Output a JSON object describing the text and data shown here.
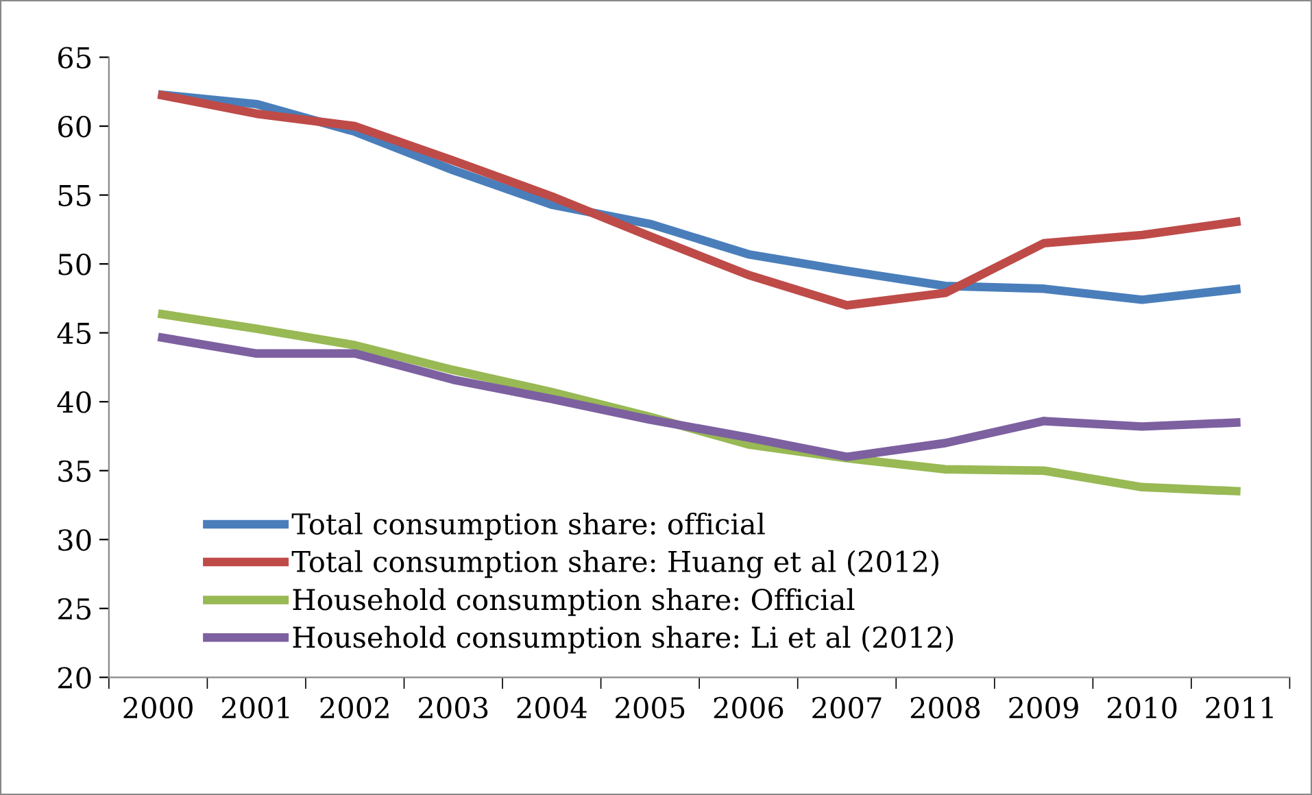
{
  "chart_data": {
    "type": "line",
    "categories": [
      "2000",
      "2001",
      "2002",
      "2003",
      "2004",
      "2005",
      "2006",
      "2007",
      "2008",
      "2009",
      "2010",
      "2011"
    ],
    "series": [
      {
        "name": "Total consumption share: official",
        "color": "#4a7ebb",
        "values": [
          62.3,
          61.6,
          59.6,
          56.8,
          54.3,
          52.9,
          50.7,
          49.5,
          48.4,
          48.2,
          47.4,
          48.2
        ]
      },
      {
        "name": "Total consumption share: Huang et al (2012)",
        "color": "#be4b48",
        "values": [
          62.3,
          60.9,
          60.0,
          57.5,
          54.9,
          52.0,
          49.2,
          47.0,
          47.9,
          51.5,
          52.1,
          53.1
        ]
      },
      {
        "name": "Household consumption share: Official",
        "color": "#98b954",
        "values": [
          46.4,
          45.3,
          44.1,
          42.3,
          40.7,
          38.9,
          36.9,
          35.9,
          35.1,
          35.0,
          33.8,
          33.5
        ]
      },
      {
        "name": "Household consumption share: Li et al (2012)",
        "color": "#7d60a0",
        "values": [
          44.7,
          43.5,
          43.5,
          41.6,
          40.2,
          38.7,
          37.4,
          36.0,
          37.0,
          38.6,
          38.2,
          38.5
        ]
      }
    ],
    "ylim": [
      20,
      65
    ],
    "yticks": [
      20,
      25,
      30,
      35,
      40,
      45,
      50,
      55,
      60,
      65
    ],
    "grid": false,
    "legend": "bottom left",
    "marker": "none",
    "line_style": "solid"
  }
}
